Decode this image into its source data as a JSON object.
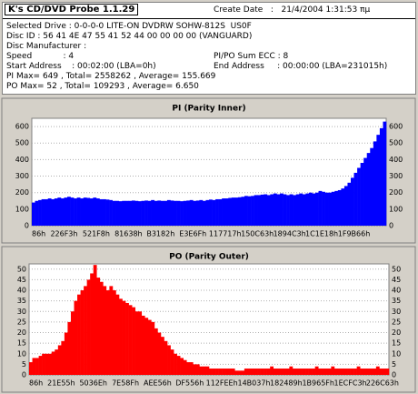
{
  "header": {
    "title": "K's CD/DVD Probe 1.1.29",
    "create_date": "Create Date   :   21/4/2004 1:31:53 πμ",
    "rows": [
      [
        "Selected Drive : 0-0-0-0 LITE-ON DVDRW SOHW-812S  US0F"
      ],
      [
        "Disc ID : 56 41 4E 47 55 41 52 44 00 00 00 00 (VANGUARD)"
      ],
      [
        "Disc Manufacturer :"
      ],
      [
        "Speed            : 4",
        "PI/PO Sum ECC : 8"
      ],
      [
        "Start Address    : 00:02:00 (LBA=0h)",
        "End Address     : 00:00:00 (LBA=231015h)"
      ],
      [
        "PI Max= 649 , Total= 2558262 , Average= 155.669"
      ],
      [
        "PO Max= 52 , Total= 109293 , Average= 6.650"
      ]
    ]
  },
  "chart_data": [
    {
      "type": "bar",
      "title": "PI (Parity Inner)",
      "color": "#0000ff",
      "categories": [
        "86h",
        null,
        null,
        null,
        null,
        null,
        null,
        null,
        null,
        null,
        "226F3h",
        null,
        null,
        null,
        null,
        null,
        null,
        null,
        null,
        null,
        "521F8h",
        null,
        null,
        null,
        null,
        null,
        null,
        null,
        null,
        null,
        "81638h",
        null,
        null,
        null,
        null,
        null,
        null,
        null,
        null,
        null,
        "B3182h",
        null,
        null,
        null,
        null,
        null,
        null,
        null,
        null,
        null,
        "E3E6Fh",
        null,
        null,
        null,
        null,
        null,
        null,
        null,
        null,
        null,
        "117717h",
        null,
        null,
        null,
        null,
        null,
        null,
        null,
        null,
        null,
        "150C63h",
        null,
        null,
        null,
        null,
        null,
        null,
        null,
        null,
        null,
        "1894C3h",
        null,
        null,
        null,
        null,
        null,
        null,
        null,
        null,
        null,
        "1C1E18h",
        null,
        null,
        null,
        null,
        null,
        null,
        null,
        null,
        null,
        "1F9B66h",
        null,
        null,
        null,
        null,
        null,
        null,
        null,
        null,
        null
      ],
      "values": [
        140,
        150,
        155,
        160,
        160,
        165,
        160,
        165,
        170,
        165,
        170,
        175,
        170,
        165,
        170,
        165,
        170,
        168,
        165,
        170,
        165,
        160,
        160,
        158,
        155,
        150,
        150,
        148,
        150,
        150,
        150,
        152,
        150,
        148,
        150,
        152,
        150,
        155,
        150,
        152,
        150,
        150,
        155,
        152,
        150,
        150,
        148,
        150,
        152,
        155,
        150,
        152,
        155,
        150,
        155,
        158,
        155,
        160,
        160,
        165,
        165,
        168,
        170,
        170,
        172,
        175,
        180,
        178,
        180,
        185,
        185,
        188,
        190,
        185,
        190,
        195,
        190,
        195,
        190,
        185,
        190,
        185,
        190,
        195,
        190,
        195,
        200,
        195,
        200,
        210,
        205,
        200,
        200,
        205,
        210,
        215,
        225,
        240,
        260,
        290,
        320,
        350,
        380,
        410,
        440,
        470,
        510,
        550,
        590,
        630
      ],
      "ylim": [
        0,
        650
      ],
      "yticks": [
        0,
        100,
        200,
        300,
        400,
        500,
        600
      ],
      "grid": true
    },
    {
      "type": "bar",
      "title": "PO (Parity Outer)",
      "color": "#ff0000",
      "categories": [
        "86h",
        null,
        null,
        null,
        null,
        null,
        null,
        null,
        null,
        null,
        "21E55h",
        null,
        null,
        null,
        null,
        null,
        null,
        null,
        null,
        null,
        "5036Eh",
        null,
        null,
        null,
        null,
        null,
        null,
        null,
        null,
        null,
        "7E58Fh",
        null,
        null,
        null,
        null,
        null,
        null,
        null,
        null,
        null,
        "AEE56h",
        null,
        null,
        null,
        null,
        null,
        null,
        null,
        null,
        null,
        "DF556h",
        null,
        null,
        null,
        null,
        null,
        null,
        null,
        null,
        null,
        "112FEEh",
        null,
        null,
        null,
        null,
        null,
        null,
        null,
        null,
        null,
        "14B037h",
        null,
        null,
        null,
        null,
        null,
        null,
        null,
        null,
        null,
        "182489h",
        null,
        null,
        null,
        null,
        null,
        null,
        null,
        null,
        null,
        "1B965Fh",
        null,
        null,
        null,
        null,
        null,
        null,
        null,
        null,
        null,
        "1ECFC3h",
        null,
        null,
        null,
        null,
        null,
        null,
        null,
        null,
        null,
        "226C63h",
        null
      ],
      "values": [
        6,
        8,
        8,
        9,
        10,
        10,
        10,
        11,
        12,
        14,
        16,
        20,
        25,
        30,
        35,
        38,
        40,
        42,
        45,
        48,
        52,
        46,
        44,
        42,
        40,
        42,
        40,
        38,
        36,
        35,
        34,
        33,
        32,
        30,
        30,
        28,
        27,
        26,
        25,
        22,
        20,
        18,
        16,
        14,
        12,
        10,
        9,
        8,
        7,
        6,
        6,
        5,
        5,
        4,
        4,
        4,
        3,
        3,
        3,
        3,
        3,
        3,
        3,
        3,
        2,
        2,
        2,
        3,
        3,
        3,
        3,
        3,
        3,
        3,
        3,
        4,
        3,
        3,
        3,
        3,
        3,
        4,
        3,
        3,
        3,
        3,
        3,
        3,
        3,
        4,
        3,
        3,
        3,
        3,
        4,
        3,
        3,
        3,
        3,
        3,
        3,
        3,
        4,
        3,
        3,
        3,
        3,
        3,
        4,
        3,
        3,
        3
      ],
      "ylim": [
        0,
        52.5
      ],
      "yticks": [
        0,
        5,
        10,
        15,
        20,
        25,
        30,
        35,
        40,
        45,
        50
      ],
      "grid": true
    }
  ]
}
